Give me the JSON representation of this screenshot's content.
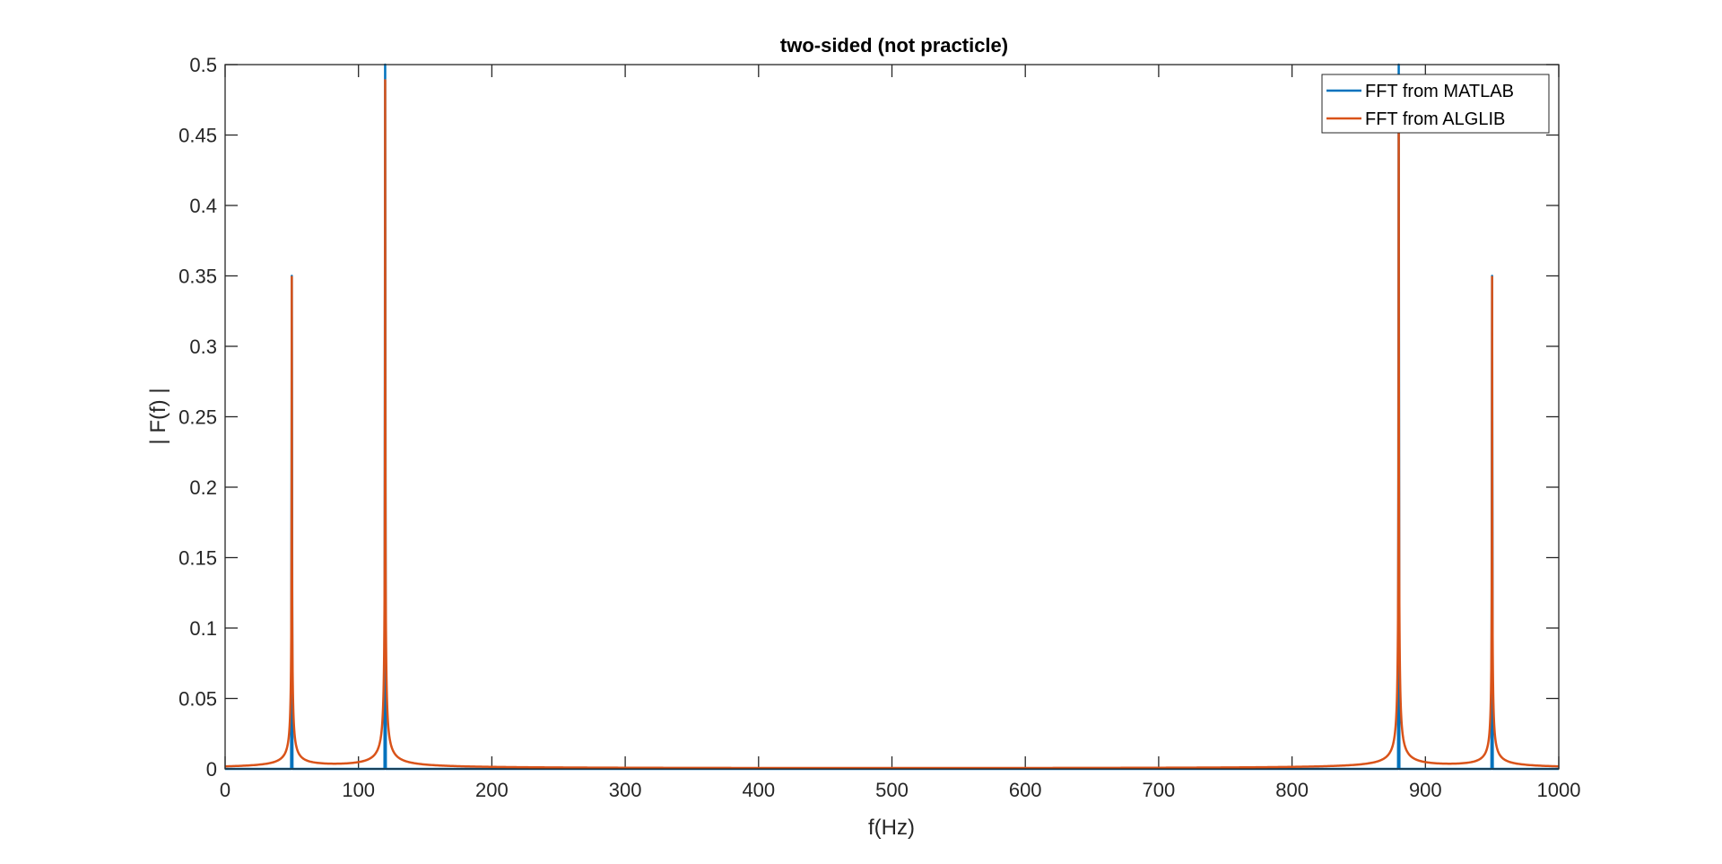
{
  "chart_data": {
    "type": "line",
    "title": "two-sided (not practicle)",
    "xlabel": "f(Hz)",
    "ylabel": "| F(f) |",
    "xlim": [
      0,
      1000
    ],
    "ylim": [
      0,
      0.5
    ],
    "xticks": [
      0,
      100,
      200,
      300,
      400,
      500,
      600,
      700,
      800,
      900,
      1000
    ],
    "yticks": [
      0,
      0.05,
      0.1,
      0.15,
      0.2,
      0.25,
      0.3,
      0.35,
      0.4,
      0.45,
      0.5
    ],
    "grid": false,
    "legend_position": "top-right",
    "series": [
      {
        "name": "FFT from MATLAB",
        "color": "#0072BD",
        "peaks": [
          {
            "x": 50,
            "y": 0.35
          },
          {
            "x": 120,
            "y": 0.5
          },
          {
            "x": 880,
            "y": 0.5
          },
          {
            "x": 950,
            "y": 0.35
          }
        ]
      },
      {
        "name": "FFT from ALGLIB",
        "color": "#D95319",
        "peaks": [
          {
            "x": 50,
            "y": 0.348
          },
          {
            "x": 120,
            "y": 0.488
          },
          {
            "x": 880,
            "y": 0.488
          },
          {
            "x": 950,
            "y": 0.348
          }
        ]
      }
    ]
  }
}
